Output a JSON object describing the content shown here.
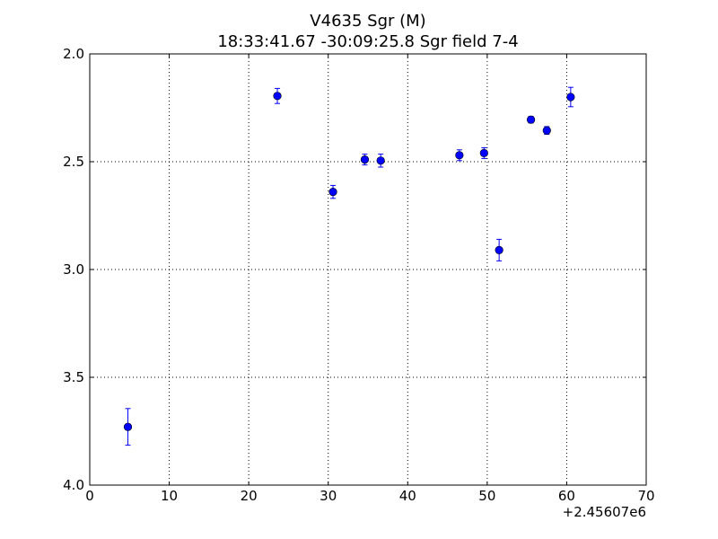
{
  "chart_data": {
    "type": "scatter",
    "title": "V4635 Sgr  (M)",
    "subtitle": "18:33:41.67 -30:09:25.8 Sgr field 7-4",
    "xlabel": "",
    "ylabel": "",
    "x_offset_label": "+2.45607e6",
    "xlim": [
      0,
      70
    ],
    "ylim": [
      4.0,
      2.0
    ],
    "y_inverted": true,
    "grid": true,
    "x_ticks": [
      0,
      10,
      20,
      30,
      40,
      50,
      60,
      70
    ],
    "x_tick_labels": [
      "0",
      "10",
      "20",
      "30",
      "40",
      "50",
      "60",
      "70"
    ],
    "y_ticks": [
      2.0,
      2.5,
      3.0,
      3.5,
      4.0
    ],
    "y_tick_labels": [
      "2.0",
      "2.5",
      "3.0",
      "3.5",
      "4.0"
    ],
    "marker_color": "#0000ff",
    "errorbar_color": "#0000ff",
    "points": [
      {
        "x": 4.8,
        "y": 3.73,
        "err": 0.085
      },
      {
        "x": 23.6,
        "y": 2.195,
        "err": 0.035
      },
      {
        "x": 30.6,
        "y": 2.64,
        "err": 0.03
      },
      {
        "x": 34.6,
        "y": 2.49,
        "err": 0.025
      },
      {
        "x": 36.6,
        "y": 2.495,
        "err": 0.03
      },
      {
        "x": 46.5,
        "y": 2.47,
        "err": 0.025
      },
      {
        "x": 49.6,
        "y": 2.46,
        "err": 0.025
      },
      {
        "x": 51.5,
        "y": 2.91,
        "err": 0.05
      },
      {
        "x": 55.5,
        "y": 2.305,
        "err": 0.015
      },
      {
        "x": 57.5,
        "y": 2.355,
        "err": 0.018
      },
      {
        "x": 60.5,
        "y": 2.2,
        "err": 0.045
      }
    ]
  }
}
